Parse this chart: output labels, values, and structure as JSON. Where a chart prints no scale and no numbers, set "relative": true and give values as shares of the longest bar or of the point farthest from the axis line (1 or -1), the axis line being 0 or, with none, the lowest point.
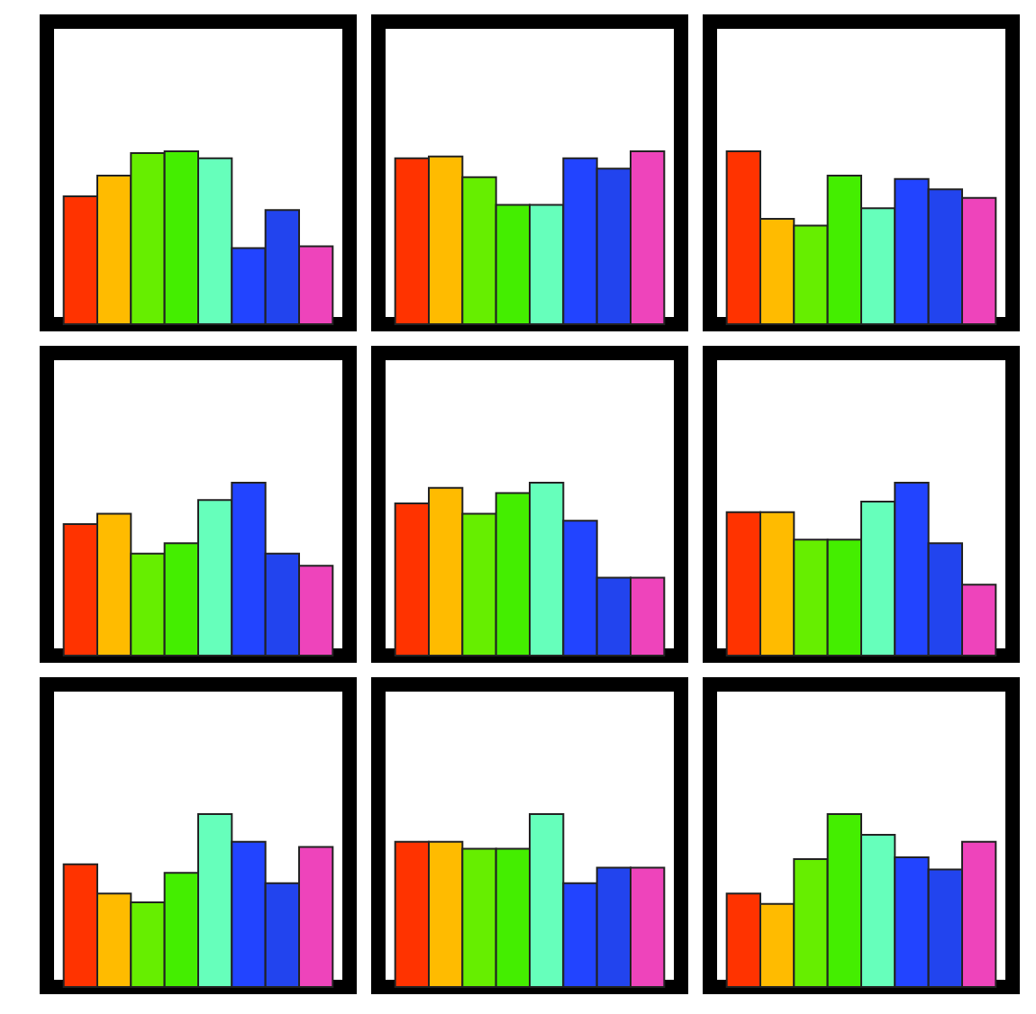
{
  "chart_data": [
    {
      "type": "bar",
      "relative": true,
      "categories": [
        null,
        null,
        null,
        null,
        null,
        null,
        null,
        null
      ],
      "values": [
        0.74,
        0.86,
        0.99,
        1,
        0.96,
        0.44,
        0.66,
        0.45
      ],
      "colors": [
        "#ff3300",
        "#ffbb00",
        "#66ee00",
        "#44ee00",
        "#66ffbb",
        "#2244ff",
        "#2244ee",
        "#ee44bb"
      ]
    },
    {
      "type": "bar",
      "relative": true,
      "categories": [
        null,
        null,
        null,
        null,
        null,
        null,
        null,
        null
      ],
      "values": [
        0.96,
        0.97,
        0.85,
        0.69,
        0.69,
        0.96,
        0.9,
        1
      ],
      "colors": [
        "#ff3300",
        "#ffbb00",
        "#66ee00",
        "#44ee00",
        "#66ffbb",
        "#2244ff",
        "#2244ee",
        "#ee44bb"
      ]
    },
    {
      "type": "bar",
      "relative": true,
      "categories": [
        null,
        null,
        null,
        null,
        null,
        null,
        null,
        null
      ],
      "values": [
        1,
        0.61,
        0.57,
        0.86,
        0.67,
        0.84,
        0.78,
        0.73
      ],
      "colors": [
        "#ff3300",
        "#ffbb00",
        "#66ee00",
        "#44ee00",
        "#66ffbb",
        "#2244ff",
        "#2244ee",
        "#ee44bb"
      ]
    },
    {
      "type": "bar",
      "relative": true,
      "categories": [
        null,
        null,
        null,
        null,
        null,
        null,
        null,
        null
      ],
      "values": [
        0.76,
        0.82,
        0.59,
        0.65,
        0.9,
        1,
        0.59,
        0.52
      ],
      "colors": [
        "#ff3300",
        "#ffbb00",
        "#66ee00",
        "#44ee00",
        "#66ffbb",
        "#2244ff",
        "#2244ee",
        "#ee44bb"
      ]
    },
    {
      "type": "bar",
      "relative": true,
      "categories": [
        null,
        null,
        null,
        null,
        null,
        null,
        null,
        null
      ],
      "values": [
        0.88,
        0.97,
        0.82,
        0.94,
        1,
        0.78,
        0.45,
        0.45
      ],
      "colors": [
        "#ff3300",
        "#ffbb00",
        "#66ee00",
        "#44ee00",
        "#66ffbb",
        "#2244ff",
        "#2244ee",
        "#ee44bb"
      ]
    },
    {
      "type": "bar",
      "relative": true,
      "categories": [
        null,
        null,
        null,
        null,
        null,
        null,
        null,
        null
      ],
      "values": [
        0.83,
        0.83,
        0.67,
        0.67,
        0.89,
        1,
        0.65,
        0.41
      ],
      "colors": [
        "#ff3300",
        "#ffbb00",
        "#66ee00",
        "#44ee00",
        "#66ffbb",
        "#2244ff",
        "#2244ee",
        "#ee44bb"
      ]
    },
    {
      "type": "bar",
      "relative": true,
      "categories": [
        null,
        null,
        null,
        null,
        null,
        null,
        null,
        null
      ],
      "values": [
        0.71,
        0.54,
        0.49,
        0.66,
        1,
        0.84,
        0.6,
        0.81
      ],
      "colors": [
        "#ff3300",
        "#ffbb00",
        "#66ee00",
        "#44ee00",
        "#66ffbb",
        "#2244ff",
        "#2244ee",
        "#ee44bb"
      ]
    },
    {
      "type": "bar",
      "relative": true,
      "categories": [
        null,
        null,
        null,
        null,
        null,
        null,
        null,
        null
      ],
      "values": [
        0.84,
        0.84,
        0.8,
        0.8,
        1,
        0.6,
        0.69,
        0.69
      ],
      "colors": [
        "#ff3300",
        "#ffbb00",
        "#66ee00",
        "#44ee00",
        "#66ffbb",
        "#2244ff",
        "#2244ee",
        "#ee44bb"
      ]
    },
    {
      "type": "bar",
      "relative": true,
      "categories": [
        null,
        null,
        null,
        null,
        null,
        null,
        null,
        null
      ],
      "values": [
        0.54,
        0.48,
        0.74,
        1,
        0.88,
        0.75,
        0.68,
        0.84
      ],
      "colors": [
        "#ff3300",
        "#ffbb00",
        "#66ee00",
        "#44ee00",
        "#66ffbb",
        "#2244ff",
        "#2244ee",
        "#ee44bb"
      ]
    }
  ]
}
